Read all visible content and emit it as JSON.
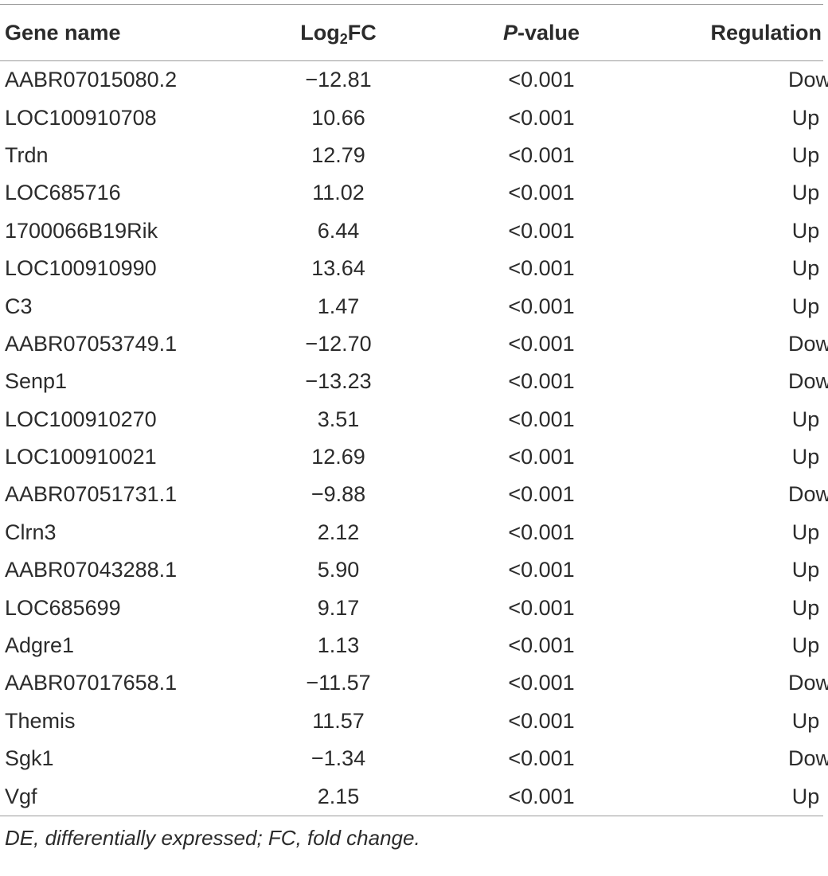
{
  "table": {
    "headers": {
      "gene_name": "Gene name",
      "log_base": "Log",
      "log_sub": "2",
      "log_suffix": "FC",
      "pvalue_italic": "P",
      "pvalue_rest": "-value",
      "regulation": "Regulation"
    },
    "rows": [
      {
        "gene": "AABR07015080.2",
        "log2fc": "−12.81",
        "pvalue": "<0.001",
        "regulation": "Down"
      },
      {
        "gene": "LOC100910708",
        "log2fc": "10.66",
        "pvalue": "<0.001",
        "regulation": "Up"
      },
      {
        "gene": "Trdn",
        "log2fc": "12.79",
        "pvalue": "<0.001",
        "regulation": "Up"
      },
      {
        "gene": "LOC685716",
        "log2fc": "11.02",
        "pvalue": "<0.001",
        "regulation": "Up"
      },
      {
        "gene": "1700066B19Rik",
        "log2fc": "6.44",
        "pvalue": "<0.001",
        "regulation": "Up"
      },
      {
        "gene": "LOC100910990",
        "log2fc": "13.64",
        "pvalue": "<0.001",
        "regulation": "Up"
      },
      {
        "gene": "C3",
        "log2fc": "1.47",
        "pvalue": "<0.001",
        "regulation": "Up"
      },
      {
        "gene": "AABR07053749.1",
        "log2fc": "−12.70",
        "pvalue": "<0.001",
        "regulation": "Down"
      },
      {
        "gene": "Senp1",
        "log2fc": "−13.23",
        "pvalue": "<0.001",
        "regulation": "Down"
      },
      {
        "gene": "LOC100910270",
        "log2fc": "3.51",
        "pvalue": "<0.001",
        "regulation": "Up"
      },
      {
        "gene": "LOC100910021",
        "log2fc": "12.69",
        "pvalue": "<0.001",
        "regulation": "Up"
      },
      {
        "gene": "AABR07051731.1",
        "log2fc": "−9.88",
        "pvalue": "<0.001",
        "regulation": "Down"
      },
      {
        "gene": "Clrn3",
        "log2fc": "2.12",
        "pvalue": "<0.001",
        "regulation": "Up"
      },
      {
        "gene": "AABR07043288.1",
        "log2fc": "5.90",
        "pvalue": "<0.001",
        "regulation": "Up"
      },
      {
        "gene": "LOC685699",
        "log2fc": "9.17",
        "pvalue": "<0.001",
        "regulation": "Up"
      },
      {
        "gene": "Adgre1",
        "log2fc": "1.13",
        "pvalue": "<0.001",
        "regulation": "Up"
      },
      {
        "gene": "AABR07017658.1",
        "log2fc": "−11.57",
        "pvalue": "<0.001",
        "regulation": "Down"
      },
      {
        "gene": "Themis",
        "log2fc": "11.57",
        "pvalue": "<0.001",
        "regulation": "Up"
      },
      {
        "gene": "Sgk1",
        "log2fc": "−1.34",
        "pvalue": "<0.001",
        "regulation": "Down"
      },
      {
        "gene": "Vgf",
        "log2fc": "2.15",
        "pvalue": "<0.001",
        "regulation": "Up"
      }
    ]
  },
  "footnote": "DE, differentially expressed; FC, fold change."
}
